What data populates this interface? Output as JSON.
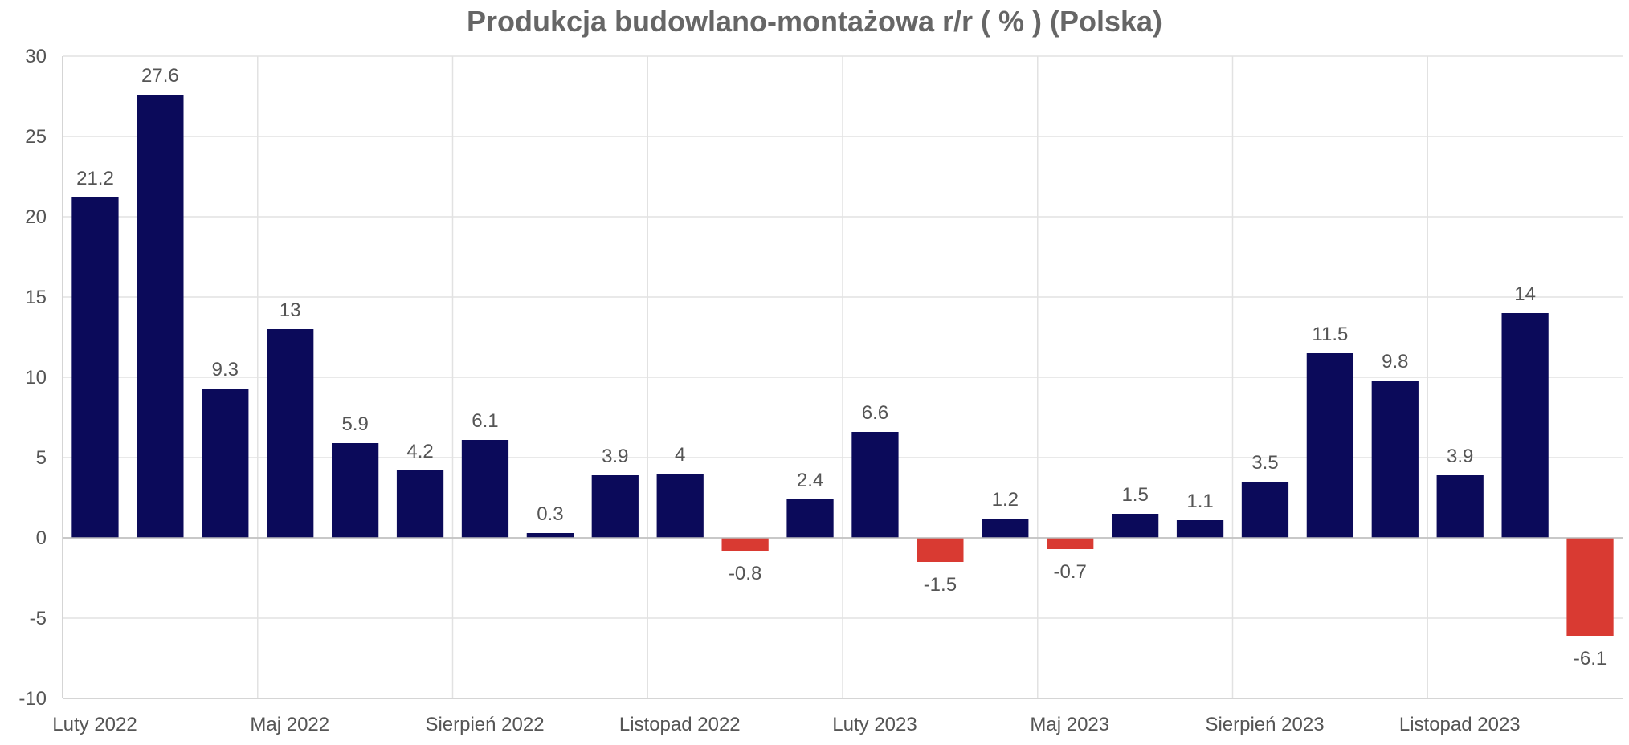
{
  "chart_data": {
    "type": "bar",
    "title": "Produkcja budowlano-montażowa r/r ( % ) (Polska)",
    "xlabel": "",
    "ylabel": "",
    "ylim": [
      -10,
      30
    ],
    "yticks": [
      30,
      25,
      20,
      15,
      10,
      5,
      0,
      -5,
      -10
    ],
    "grid": true,
    "legend": "none",
    "x_tick_labels": [
      {
        "index": 0,
        "label": "Luty 2022"
      },
      {
        "index": 3,
        "label": "Maj 2022"
      },
      {
        "index": 6,
        "label": "Sierpień 2022"
      },
      {
        "index": 9,
        "label": "Listopad 2022"
      },
      {
        "index": 12,
        "label": "Luty 2023"
      },
      {
        "index": 15,
        "label": "Maj 2023"
      },
      {
        "index": 18,
        "label": "Sierpień 2023"
      },
      {
        "index": 21,
        "label": "Listopad 2023"
      }
    ],
    "values": [
      21.2,
      27.6,
      9.3,
      13,
      5.9,
      4.2,
      6.1,
      0.3,
      3.9,
      4,
      -0.8,
      2.4,
      6.6,
      -1.5,
      1.2,
      -0.7,
      1.5,
      1.1,
      3.5,
      11.5,
      9.8,
      3.9,
      14,
      -6.1
    ],
    "colors": {
      "positive": "#0b0a5a",
      "negative": "#d93a32",
      "grid": "#e2e2e2",
      "axis": "#cccccc"
    }
  }
}
